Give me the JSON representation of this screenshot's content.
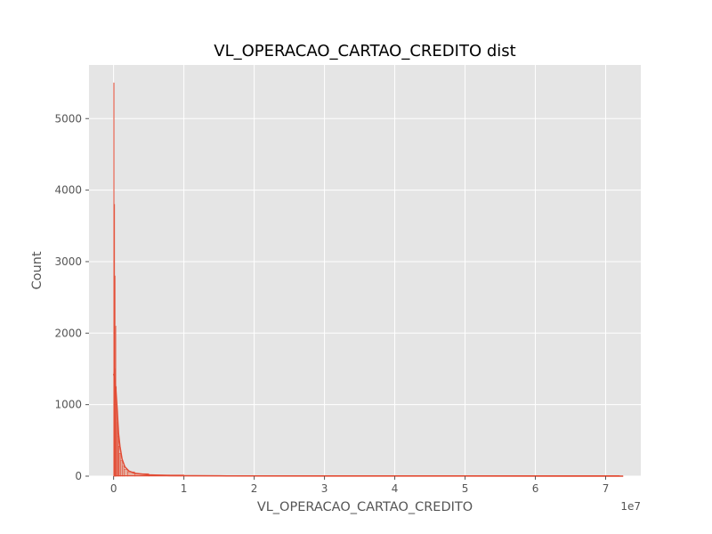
{
  "chart_data": {
    "type": "histogram",
    "title": "VL_OPERACAO_CARTAO_CREDITO dist",
    "xlabel": "VL_OPERACAO_CARTAO_CREDITO",
    "ylabel": "Count",
    "x_offset_label": "1e7",
    "xlim": [
      -3500000,
      75000000
    ],
    "ylim": [
      0,
      5750
    ],
    "x_ticks": [
      {
        "value": 0,
        "label": "0"
      },
      {
        "value": 10000000,
        "label": "1"
      },
      {
        "value": 20000000,
        "label": "2"
      },
      {
        "value": 30000000,
        "label": "3"
      },
      {
        "value": 40000000,
        "label": "4"
      },
      {
        "value": 50000000,
        "label": "5"
      },
      {
        "value": 60000000,
        "label": "6"
      },
      {
        "value": 70000000,
        "label": "7"
      }
    ],
    "y_ticks": [
      {
        "value": 0,
        "label": "0"
      },
      {
        "value": 1000,
        "label": "1000"
      },
      {
        "value": 2000,
        "label": "2000"
      },
      {
        "value": 3000,
        "label": "3000"
      },
      {
        "value": 4000,
        "label": "4000"
      },
      {
        "value": 5000,
        "label": "5000"
      }
    ],
    "grid": true,
    "style": "ggplot",
    "colors": {
      "bar_fill": "#e5ae9f",
      "line": "#e24a33",
      "axes_bg": "#e5e5e5",
      "grid": "#ffffff"
    },
    "bins": [
      {
        "x": 0,
        "count": 5500
      },
      {
        "x": 40000,
        "count": 1450
      },
      {
        "x": 80000,
        "count": 3800
      },
      {
        "x": 120000,
        "count": 2600
      },
      {
        "x": 160000,
        "count": 2800
      },
      {
        "x": 200000,
        "count": 1500
      },
      {
        "x": 250000,
        "count": 2100
      },
      {
        "x": 300000,
        "count": 1250
      },
      {
        "x": 400000,
        "count": 1000
      },
      {
        "x": 500000,
        "count": 750
      },
      {
        "x": 600000,
        "count": 560
      },
      {
        "x": 700000,
        "count": 420
      },
      {
        "x": 800000,
        "count": 320
      },
      {
        "x": 1000000,
        "count": 220
      },
      {
        "x": 1250000,
        "count": 140
      },
      {
        "x": 1500000,
        "count": 95
      },
      {
        "x": 2000000,
        "count": 60
      },
      {
        "x": 3000000,
        "count": 35
      },
      {
        "x": 5000000,
        "count": 18
      },
      {
        "x": 10000000,
        "count": 8
      },
      {
        "x": 20000000,
        "count": 3
      },
      {
        "x": 40000000,
        "count": 1
      },
      {
        "x": 72000000,
        "count": 0
      }
    ],
    "kde": [
      {
        "x": 0,
        "y": 1430
      },
      {
        "x": 150000,
        "y": 1380
      },
      {
        "x": 300000,
        "y": 1240
      },
      {
        "x": 500000,
        "y": 950
      },
      {
        "x": 700000,
        "y": 600
      },
      {
        "x": 900000,
        "y": 420
      },
      {
        "x": 1200000,
        "y": 240
      },
      {
        "x": 1600000,
        "y": 130
      },
      {
        "x": 2200000,
        "y": 70
      },
      {
        "x": 3000000,
        "y": 40
      },
      {
        "x": 5000000,
        "y": 18
      },
      {
        "x": 8000000,
        "y": 8
      },
      {
        "x": 15000000,
        "y": 4
      },
      {
        "x": 30000000,
        "y": 2
      },
      {
        "x": 50000000,
        "y": 1
      },
      {
        "x": 72500000,
        "y": 0
      }
    ]
  }
}
